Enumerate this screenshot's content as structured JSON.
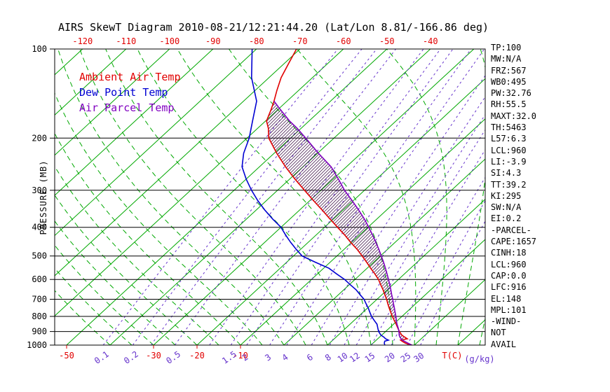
{
  "title": "AIRS SkewT Diagram 2010-08-21/12:21:44.20 (Lat/Lon 8.81/-166.86 deg)",
  "legend": [
    {
      "label": "Ambient Air Temp",
      "color": "#e10000"
    },
    {
      "label": "Dew Point Temp",
      "color": "#0000d2"
    },
    {
      "label": "Air Parcel Temp",
      "color": "#8000c0"
    }
  ],
  "colors": {
    "isotherm_green": "#00a800",
    "moist_adiabat_green": "#00a800",
    "mixing_ratio_purple": "#6633cc",
    "ambient_red": "#e10000",
    "dewpoint_blue": "#0000d2",
    "parcel_purple": "#8000c0",
    "axis_black": "#000000",
    "hatch": "#30003a",
    "background": "#ffffff"
  },
  "axes": {
    "pressure_label": "PRESSURE (MB)",
    "pressure_ticks": [
      100,
      200,
      300,
      400,
      500,
      600,
      700,
      800,
      900,
      1000
    ],
    "top_temp_ticks": [
      -120,
      -110,
      -100,
      -90,
      -80,
      -70,
      -60,
      -50,
      -40
    ],
    "bottom_temp_ticks": [
      -50,
      -30,
      -20,
      -10
    ],
    "temp_unit_label": "T(C)",
    "mixing_ratio_ticks": [
      0.1,
      0.2,
      0.5,
      1.5,
      2,
      3,
      4,
      6,
      8,
      10,
      12,
      15,
      20,
      25,
      30
    ],
    "mixing_unit_label": "(g/kg)"
  },
  "stats_panel": {
    "lines": [
      "TP:100",
      "MW:N/A",
      "FRZ:567",
      "WB0:495",
      "PW:32.76",
      "RH:55.5",
      "MAXT:32.0",
      "TH:5463",
      "L57:6.3",
      "LCL:960",
      "LI:-3.9",
      "SI:4.3",
      "TT:39.2",
      "KI:295",
      "SW:N/A",
      "EI:0.2",
      "-PARCEL-",
      "CAPE:1657",
      "CINH:18",
      "LCL:960",
      "CAP:0.0",
      "LFC:916",
      "EL:148",
      "MPL:101",
      "-WIND-",
      "NOT",
      "AVAIL"
    ]
  },
  "chart_data": {
    "type": "line",
    "diagram": "skew-t-log-p",
    "pressure_axis": {
      "min": 100,
      "max": 1000,
      "scale": "log",
      "unit": "MB"
    },
    "temperature_axis": {
      "unit": "T(C)",
      "top_labels": [
        -120,
        -110,
        -100,
        -90,
        -80,
        -70,
        -60,
        -50,
        -40
      ],
      "bottom_labels": [
        -50,
        -30,
        -20,
        -10
      ]
    },
    "isotherms_c": {
      "start": -160,
      "end": 60,
      "step": 10
    },
    "moist_adiabat_surface_temps_c": [
      -40,
      -35,
      -30,
      -25,
      -20,
      -15,
      -10,
      -5,
      0,
      5,
      10,
      15,
      20,
      25,
      30,
      35,
      40,
      45,
      50
    ],
    "mixing_ratio_lines_g_per_kg": [
      0.1,
      0.2,
      0.3,
      0.5,
      1,
      1.5,
      2,
      3,
      4,
      6,
      8,
      10,
      12,
      15,
      20,
      25,
      30
    ],
    "hatch_between_series": [
      "Ambient Air Temp",
      "Air Parcel Temp"
    ],
    "hatch_pressure_range_mb": [
      150,
      955
    ],
    "series": [
      {
        "name": "Ambient Air Temp",
        "color": "#e10000",
        "points_p_mb_t_c": [
          [
            1012,
            30.2
          ],
          [
            1000,
            29.4
          ],
          [
            985,
            27.4
          ],
          [
            970,
            26.2
          ],
          [
            962,
            25.6
          ],
          [
            952,
            26.8
          ],
          [
            940,
            25.8
          ],
          [
            925,
            24.6
          ],
          [
            900,
            23.2
          ],
          [
            875,
            21.9
          ],
          [
            850,
            20.6
          ],
          [
            825,
            19.2
          ],
          [
            800,
            17.8
          ],
          [
            775,
            16.4
          ],
          [
            750,
            15.0
          ],
          [
            725,
            13.6
          ],
          [
            700,
            12.2
          ],
          [
            675,
            10.6
          ],
          [
            650,
            9.0
          ],
          [
            625,
            7.2
          ],
          [
            600,
            5.4
          ],
          [
            575,
            3.2
          ],
          [
            550,
            0.8
          ],
          [
            525,
            -1.6
          ],
          [
            500,
            -4.2
          ],
          [
            475,
            -7.0
          ],
          [
            450,
            -10.2
          ],
          [
            425,
            -13.4
          ],
          [
            400,
            -17.0
          ],
          [
            375,
            -20.8
          ],
          [
            350,
            -24.8
          ],
          [
            325,
            -29.2
          ],
          [
            300,
            -33.8
          ],
          [
            275,
            -38.8
          ],
          [
            250,
            -44.0
          ],
          [
            225,
            -49.4
          ],
          [
            200,
            -55.0
          ],
          [
            185,
            -57.6
          ],
          [
            175,
            -59.8
          ],
          [
            160,
            -61.6
          ],
          [
            150,
            -63.0
          ],
          [
            138,
            -65.0
          ],
          [
            125,
            -67.2
          ],
          [
            112,
            -69.0
          ],
          [
            100,
            -70.8
          ]
        ]
      },
      {
        "name": "Dew Point Temp",
        "color": "#0000d2",
        "points_p_mb_t_c": [
          [
            1012,
            23.8
          ],
          [
            1000,
            23.2
          ],
          [
            985,
            22.6
          ],
          [
            970,
            22.2
          ],
          [
            962,
            22.8
          ],
          [
            952,
            21.8
          ],
          [
            940,
            21.0
          ],
          [
            925,
            19.8
          ],
          [
            900,
            18.4
          ],
          [
            875,
            17.3
          ],
          [
            850,
            16.2
          ],
          [
            825,
            14.6
          ],
          [
            800,
            13.0
          ],
          [
            775,
            11.6
          ],
          [
            750,
            10.2
          ],
          [
            725,
            8.6
          ],
          [
            700,
            7.0
          ],
          [
            675,
            4.9
          ],
          [
            650,
            2.8
          ],
          [
            625,
            0.2
          ],
          [
            600,
            -2.4
          ],
          [
            575,
            -5.6
          ],
          [
            550,
            -8.8
          ],
          [
            525,
            -13.4
          ],
          [
            500,
            -18.0
          ],
          [
            475,
            -21.0
          ],
          [
            450,
            -24.0
          ],
          [
            425,
            -27.0
          ],
          [
            400,
            -30.0
          ],
          [
            375,
            -34.0
          ],
          [
            350,
            -38.0
          ],
          [
            325,
            -42.0
          ],
          [
            300,
            -46.0
          ],
          [
            275,
            -50.0
          ],
          [
            250,
            -54.0
          ],
          [
            225,
            -57.0
          ],
          [
            200,
            -59.5
          ],
          [
            175,
            -63.0
          ],
          [
            150,
            -67.0
          ],
          [
            125,
            -74.0
          ],
          [
            100,
            -81.0
          ]
        ]
      },
      {
        "name": "Air Parcel Temp",
        "color": "#8000c0",
        "points_p_mb_t_c": [
          [
            1000,
            29.4
          ],
          [
            980,
            27.6
          ],
          [
            960,
            25.8
          ],
          [
            940,
            24.7
          ],
          [
            925,
            24.0
          ],
          [
            900,
            23.1
          ],
          [
            875,
            22.0
          ],
          [
            850,
            20.8
          ],
          [
            825,
            19.7
          ],
          [
            800,
            18.6
          ],
          [
            775,
            17.4
          ],
          [
            750,
            16.2
          ],
          [
            725,
            14.9
          ],
          [
            700,
            13.6
          ],
          [
            675,
            12.2
          ],
          [
            650,
            10.8
          ],
          [
            625,
            9.3
          ],
          [
            600,
            7.7
          ],
          [
            575,
            6.0
          ],
          [
            550,
            4.2
          ],
          [
            525,
            2.3
          ],
          [
            500,
            0.2
          ],
          [
            475,
            -2.0
          ],
          [
            450,
            -4.4
          ],
          [
            425,
            -7.0
          ],
          [
            400,
            -9.8
          ],
          [
            375,
            -12.9
          ],
          [
            350,
            -16.4
          ],
          [
            325,
            -20.3
          ],
          [
            300,
            -24.6
          ],
          [
            275,
            -28.8
          ],
          [
            250,
            -33.5
          ],
          [
            225,
            -39.8
          ],
          [
            200,
            -46.5
          ],
          [
            185,
            -51.0
          ],
          [
            175,
            -54.5
          ],
          [
            160,
            -59.5
          ],
          [
            150,
            -63.0
          ]
        ]
      }
    ]
  }
}
